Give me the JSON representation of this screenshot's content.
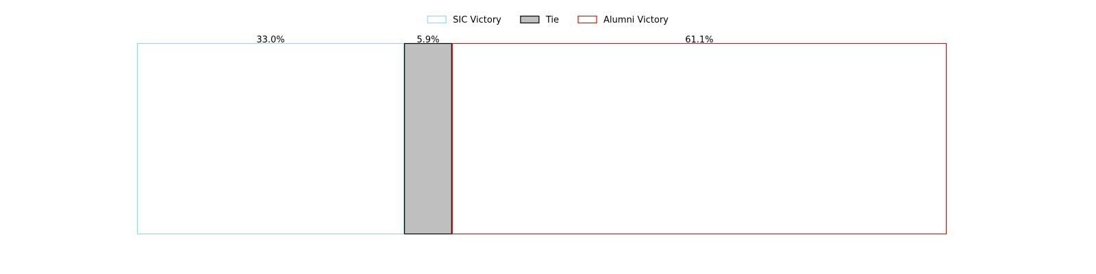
{
  "chart_data": {
    "type": "bar",
    "orientation": "horizontal",
    "stacked": true,
    "categories": [
      ""
    ],
    "series": [
      {
        "name": "SIC Victory",
        "values": [
          33.0
        ],
        "label": "33.0%",
        "color": "#7fe3e8",
        "fill": "#ffffff"
      },
      {
        "name": "Tie",
        "values": [
          5.9
        ],
        "label": "5.9%",
        "color": "#000000",
        "fill": "#bfbfbf"
      },
      {
        "name": "Alumni Victory",
        "values": [
          61.1
        ],
        "label": "61.1%",
        "color": "#ff0000",
        "fill": "#ffffff"
      }
    ],
    "xlim": [
      0,
      100
    ],
    "title": "",
    "xlabel": "",
    "ylabel": "",
    "axes_visible": false,
    "grid": false,
    "legend": "top-center"
  }
}
